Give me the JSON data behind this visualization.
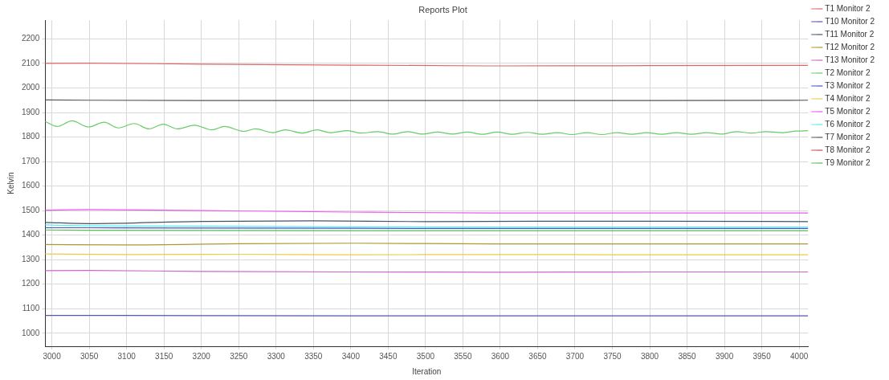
{
  "chart_data": {
    "type": "line",
    "title": "Reports Plot",
    "xlabel": "Iteration",
    "ylabel": "Kelvin",
    "xlim": [
      2991,
      4012
    ],
    "xticks": [
      3000,
      3050,
      3100,
      3150,
      3200,
      3250,
      3300,
      3350,
      3400,
      3450,
      3500,
      3550,
      3600,
      3650,
      3700,
      3750,
      3800,
      3850,
      3900,
      3950,
      4000
    ],
    "ylim": [
      947,
      2276
    ],
    "yticks": [
      1000,
      1100,
      1200,
      1300,
      1400,
      1500,
      1600,
      1700,
      1800,
      1900,
      2000,
      2100,
      2200
    ],
    "grid": true,
    "legend": "top right",
    "marker": "none",
    "line_style": "solid",
    "series": [
      {
        "name": "T1 Monitor 2",
        "color": "#e06666",
        "x": [
          2991,
          3050,
          3200,
          3400,
          3600,
          3800,
          4012
        ],
        "values": [
          2100,
          2101,
          2097,
          2093,
          2090,
          2091,
          2092
        ]
      },
      {
        "name": "T10 Monitor 2",
        "color": "#5555aa",
        "x": [
          2991,
          3050,
          3200,
          3400,
          3600,
          3800,
          4012
        ],
        "values": [
          1073,
          1073,
          1072,
          1071,
          1071,
          1071,
          1071
        ]
      },
      {
        "name": "T11 Monitor 2",
        "color": "#445566",
        "x": [
          2991,
          3050,
          3200,
          3350,
          3500,
          3650,
          3800,
          4012
        ],
        "values": [
          1452,
          1447,
          1456,
          1458,
          1455,
          1457,
          1457,
          1455
        ]
      },
      {
        "name": "T12 Monitor 2",
        "color": "#aa9933",
        "x": [
          2991,
          3100,
          3250,
          3400,
          3600,
          3800,
          4012
        ],
        "values": [
          1362,
          1360,
          1365,
          1367,
          1364,
          1364,
          1364
        ]
      },
      {
        "name": "T13 Monitor 2",
        "color": "#cc66cc",
        "x": [
          2991,
          3050,
          3200,
          3400,
          3600,
          3800,
          4012
        ],
        "values": [
          1255,
          1256,
          1252,
          1250,
          1249,
          1250,
          1250
        ]
      },
      {
        "name": "T2 Monitor 2",
        "color": "#66cc66",
        "x": [
          2991,
          3007,
          3027,
          3049,
          3070,
          3089,
          3110,
          3130,
          3149,
          3168,
          3191,
          3214,
          3231,
          3257,
          3272,
          3296,
          3312,
          3335,
          3355,
          3372,
          3396,
          3413,
          3436,
          3456,
          3476,
          3496,
          3516,
          3536,
          3556,
          3576,
          3596,
          3616,
          3636,
          3656,
          3676,
          3696,
          3716,
          3736,
          3756,
          3776,
          3796,
          3816,
          3836,
          3856,
          3876,
          3896,
          3916,
          3936,
          3956,
          3976,
          3996,
          4012
        ],
        "values": [
          1863,
          1843,
          1866,
          1841,
          1860,
          1837,
          1855,
          1833,
          1852,
          1833,
          1848,
          1829,
          1843,
          1823,
          1833,
          1818,
          1829,
          1816,
          1829,
          1818,
          1826,
          1816,
          1822,
          1812,
          1822,
          1812,
          1820,
          1812,
          1820,
          1811,
          1820,
          1811,
          1819,
          1811,
          1818,
          1810,
          1818,
          1810,
          1818,
          1811,
          1818,
          1811,
          1818,
          1811,
          1818,
          1812,
          1822,
          1816,
          1822,
          1818,
          1824,
          1826
        ]
      },
      {
        "name": "T3 Monitor 2",
        "color": "#4455cc",
        "x": [
          2991,
          3050,
          3200,
          3400,
          3600,
          3800,
          4012
        ],
        "values": [
          1430,
          1430,
          1429,
          1428,
          1427,
          1427,
          1427
        ]
      },
      {
        "name": "T4 Monitor 2",
        "color": "#eecc44",
        "x": [
          2991,
          3100,
          3250,
          3400,
          3600,
          3800,
          4012
        ],
        "values": [
          1323,
          1321,
          1322,
          1320,
          1321,
          1320,
          1320
        ]
      },
      {
        "name": "T5 Monitor 2",
        "color": "#ee55ee",
        "x": [
          2991,
          3050,
          3200,
          3400,
          3600,
          3800,
          4012
        ],
        "values": [
          1502,
          1504,
          1500,
          1494,
          1490,
          1490,
          1490
        ]
      },
      {
        "name": "T6 Monitor 2",
        "color": "#55eeee",
        "x": [
          2991,
          3050,
          3200,
          3400,
          3600,
          3800,
          4012
        ],
        "values": [
          1442,
          1438,
          1436,
          1434,
          1433,
          1433,
          1433
        ]
      },
      {
        "name": "T7 Monitor 2",
        "color": "#555555",
        "x": [
          2991,
          3050,
          3200,
          3400,
          3600,
          3800,
          4012
        ],
        "values": [
          1951,
          1950,
          1949,
          1949,
          1949,
          1949,
          1950
        ]
      },
      {
        "name": "T8 Monitor 2",
        "color": "#c05050"
      },
      {
        "name": "T9 Monitor 2",
        "color": "#55bb55",
        "x": [
          2991,
          3050,
          3200,
          3400,
          3600,
          3800,
          4012
        ],
        "values": [
          1421,
          1420,
          1419,
          1418,
          1418,
          1418,
          1418
        ]
      }
    ]
  }
}
